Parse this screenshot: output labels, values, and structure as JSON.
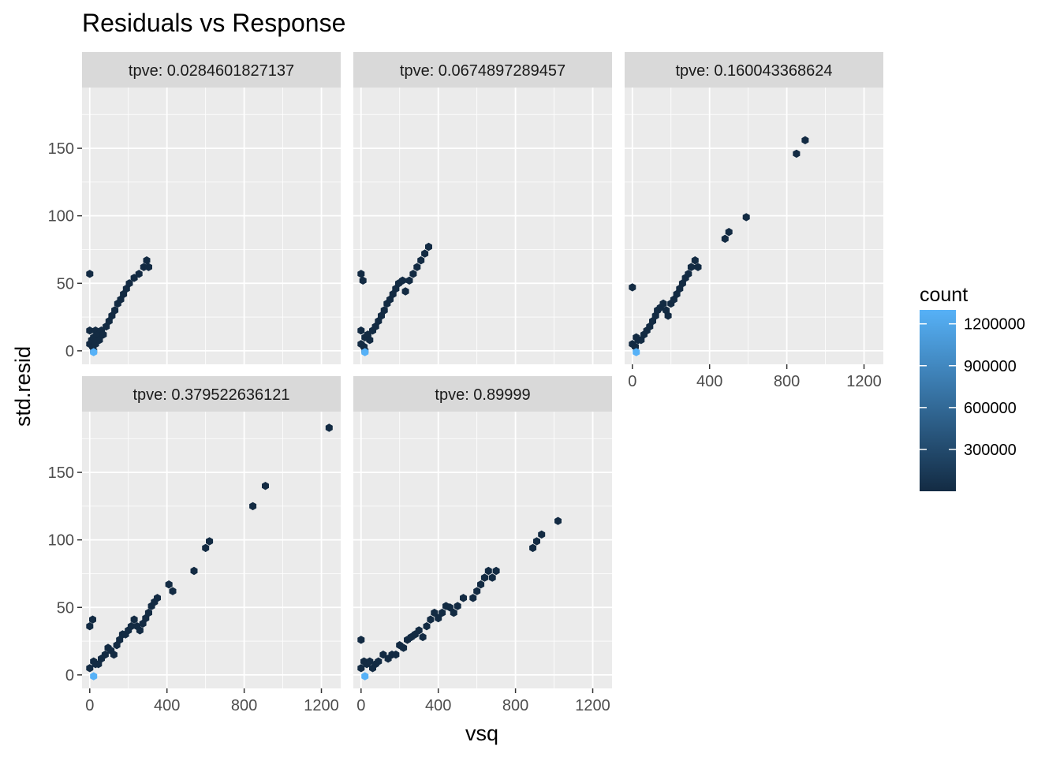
{
  "chart_data": {
    "type": "hexbin",
    "title": "Residuals vs Response",
    "xlabel": "vsq",
    "ylabel": "std.resid",
    "xlim": [
      -40,
      1300
    ],
    "ylim": [
      -10,
      195
    ],
    "xticks": [
      0,
      400,
      800,
      1200
    ],
    "yticks": [
      0,
      50,
      100,
      150
    ],
    "legend": {
      "title": "count",
      "placement": "right",
      "range": [
        0,
        1300000
      ],
      "breaks": [
        300000,
        600000,
        900000,
        1200000
      ],
      "break_labels": [
        "300000",
        "600000",
        "900000",
        "1200000"
      ],
      "color_low": "#132B43",
      "color_high": "#56B1F7"
    },
    "panels": [
      {
        "label": "tpve: 0.0284601827137",
        "points": [
          [
            0,
            57
          ],
          [
            0,
            15
          ],
          [
            0,
            5
          ],
          [
            10,
            8
          ],
          [
            15,
            3
          ],
          [
            20,
            0
          ],
          [
            20,
            10
          ],
          [
            30,
            15
          ],
          [
            30,
            5
          ],
          [
            45,
            12
          ],
          [
            50,
            8
          ],
          [
            60,
            15
          ],
          [
            70,
            12
          ],
          [
            85,
            18
          ],
          [
            100,
            22
          ],
          [
            115,
            26
          ],
          [
            130,
            30
          ],
          [
            145,
            35
          ],
          [
            160,
            38
          ],
          [
            175,
            42
          ],
          [
            190,
            46
          ],
          [
            205,
            50
          ],
          [
            230,
            54
          ],
          [
            255,
            57
          ],
          [
            280,
            62
          ],
          [
            295,
            67
          ],
          [
            305,
            62
          ]
        ],
        "highlight": [
          20,
          -1
        ]
      },
      {
        "label": "tpve: 0.0674897289457",
        "points": [
          [
            0,
            57
          ],
          [
            10,
            52
          ],
          [
            0,
            15
          ],
          [
            0,
            5
          ],
          [
            15,
            3
          ],
          [
            20,
            0
          ],
          [
            20,
            10
          ],
          [
            35,
            12
          ],
          [
            45,
            8
          ],
          [
            60,
            15
          ],
          [
            75,
            18
          ],
          [
            90,
            22
          ],
          [
            105,
            26
          ],
          [
            120,
            30
          ],
          [
            135,
            35
          ],
          [
            150,
            38
          ],
          [
            165,
            42
          ],
          [
            180,
            46
          ],
          [
            195,
            50
          ],
          [
            215,
            52
          ],
          [
            230,
            44
          ],
          [
            250,
            52
          ],
          [
            270,
            57
          ],
          [
            290,
            62
          ],
          [
            310,
            67
          ],
          [
            330,
            72
          ],
          [
            350,
            77
          ]
        ],
        "highlight": [
          20,
          -1
        ]
      },
      {
        "label": "tpve: 0.160043368624",
        "points": [
          [
            0,
            47
          ],
          [
            0,
            5
          ],
          [
            15,
            3
          ],
          [
            20,
            10
          ],
          [
            30,
            8
          ],
          [
            45,
            8
          ],
          [
            60,
            12
          ],
          [
            75,
            15
          ],
          [
            90,
            18
          ],
          [
            105,
            22
          ],
          [
            120,
            26
          ],
          [
            130,
            30
          ],
          [
            145,
            32
          ],
          [
            160,
            35
          ],
          [
            175,
            30
          ],
          [
            185,
            26
          ],
          [
            200,
            35
          ],
          [
            215,
            38
          ],
          [
            230,
            42
          ],
          [
            245,
            46
          ],
          [
            260,
            50
          ],
          [
            275,
            54
          ],
          [
            290,
            57
          ],
          [
            305,
            62
          ],
          [
            325,
            67
          ],
          [
            340,
            62
          ],
          [
            480,
            83
          ],
          [
            500,
            88
          ],
          [
            590,
            99
          ],
          [
            850,
            146
          ],
          [
            895,
            156
          ]
        ],
        "highlight": [
          20,
          -1
        ]
      },
      {
        "label": "tpve: 0.379522636121",
        "points": [
          [
            0,
            36
          ],
          [
            0,
            5
          ],
          [
            15,
            41
          ],
          [
            20,
            10
          ],
          [
            30,
            8
          ],
          [
            45,
            8
          ],
          [
            60,
            12
          ],
          [
            80,
            15
          ],
          [
            95,
            20
          ],
          [
            110,
            18
          ],
          [
            125,
            15
          ],
          [
            140,
            22
          ],
          [
            155,
            26
          ],
          [
            170,
            30
          ],
          [
            185,
            30
          ],
          [
            200,
            33
          ],
          [
            215,
            36
          ],
          [
            230,
            41
          ],
          [
            245,
            36
          ],
          [
            260,
            33
          ],
          [
            275,
            38
          ],
          [
            290,
            42
          ],
          [
            305,
            46
          ],
          [
            320,
            51
          ],
          [
            335,
            54
          ],
          [
            350,
            57
          ],
          [
            410,
            67
          ],
          [
            430,
            62
          ],
          [
            540,
            77
          ],
          [
            600,
            94
          ],
          [
            620,
            99
          ],
          [
            845,
            125
          ],
          [
            910,
            140
          ],
          [
            1240,
            183
          ]
        ],
        "highlight": [
          20,
          -1
        ]
      },
      {
        "label": "tpve: 0.89999",
        "points": [
          [
            0,
            26
          ],
          [
            0,
            5
          ],
          [
            15,
            10
          ],
          [
            30,
            8
          ],
          [
            45,
            10
          ],
          [
            60,
            5
          ],
          [
            75,
            8
          ],
          [
            90,
            10
          ],
          [
            115,
            15
          ],
          [
            140,
            12
          ],
          [
            160,
            15
          ],
          [
            180,
            15
          ],
          [
            200,
            22
          ],
          [
            220,
            20
          ],
          [
            240,
            26
          ],
          [
            260,
            28
          ],
          [
            280,
            30
          ],
          [
            300,
            33
          ],
          [
            320,
            28
          ],
          [
            340,
            36
          ],
          [
            360,
            41
          ],
          [
            380,
            46
          ],
          [
            400,
            42
          ],
          [
            420,
            46
          ],
          [
            440,
            51
          ],
          [
            460,
            50
          ],
          [
            480,
            46
          ],
          [
            500,
            51
          ],
          [
            530,
            57
          ],
          [
            580,
            57
          ],
          [
            600,
            62
          ],
          [
            620,
            67
          ],
          [
            640,
            72
          ],
          [
            660,
            77
          ],
          [
            680,
            72
          ],
          [
            700,
            77
          ],
          [
            890,
            94
          ],
          [
            910,
            99
          ],
          [
            935,
            104
          ],
          [
            1020,
            114
          ]
        ],
        "highlight": [
          20,
          -1
        ]
      }
    ]
  }
}
